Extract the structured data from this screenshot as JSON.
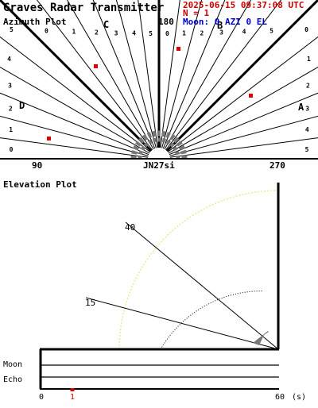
{
  "header": {
    "title": "Graves Radar Transmitter",
    "timestamp": "2025-06-15 09:37:08 UTC",
    "count_line": "N = 1",
    "moon_status": "Moon: 0 AZI 0 EL"
  },
  "azimuth": {
    "section_title": "Azimuth Plot",
    "sectors": [
      "A",
      "B",
      "C",
      "D"
    ],
    "tick_numbers": [
      "0",
      "1",
      "2",
      "3",
      "4",
      "5"
    ],
    "labels": {
      "left": "90",
      "center": "180",
      "right": "270"
    },
    "locator": "JN27si"
  },
  "elevation": {
    "section_title": "Elevation Plot",
    "angle_labels": [
      "40",
      "15"
    ],
    "angle_values": [
      40,
      15
    ]
  },
  "timeline": {
    "row_labels": [
      "Moon",
      "Echo"
    ],
    "axis_start": "0",
    "axis_end": "60",
    "unit": "(s)",
    "marker_label": "1",
    "marker_seconds": 1
  },
  "colors": {
    "header": "#cc0000",
    "moon": "#0000cc",
    "marker": "#dd0000",
    "elevation_arc": "#e6e68c"
  }
}
